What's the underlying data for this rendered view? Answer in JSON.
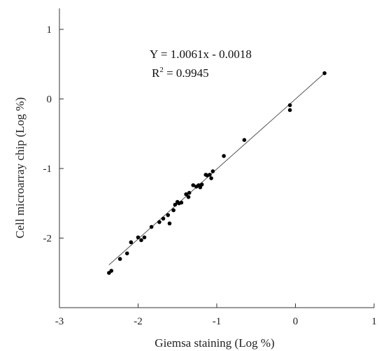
{
  "chart_data": {
    "type": "scatter",
    "title": "",
    "xlabel": "Giemsa staining (Log %)",
    "ylabel": "Cell microarray chip (Log %)",
    "xlim": [
      -3,
      1
    ],
    "ylim": [
      -3,
      1
    ],
    "xticks": [
      -3,
      -2,
      -1,
      0,
      1
    ],
    "yticks": [
      -2,
      -1,
      0,
      1
    ],
    "grid": false,
    "annotations": {
      "equation": "Y = 1.0061x - 0.0018",
      "r2_prefix": "R",
      "r2_sup": "2",
      "r2_suffix": " = 0.9945"
    },
    "fit_line": {
      "slope": 1.0061,
      "intercept": -0.0018,
      "x_range": [
        -2.37,
        0.37
      ]
    },
    "series": [
      {
        "points": [
          [
            -2.37,
            -2.5
          ],
          [
            -2.34,
            -2.47
          ],
          [
            -2.23,
            -2.3
          ],
          [
            -2.14,
            -2.22
          ],
          [
            -2.09,
            -2.06
          ],
          [
            -2.0,
            -1.99
          ],
          [
            -1.96,
            -2.03
          ],
          [
            -1.92,
            -1.99
          ],
          [
            -1.83,
            -1.84
          ],
          [
            -1.73,
            -1.77
          ],
          [
            -1.68,
            -1.72
          ],
          [
            -1.62,
            -1.67
          ],
          [
            -1.6,
            -1.79
          ],
          [
            -1.55,
            -1.6
          ],
          [
            -1.53,
            -1.52
          ],
          [
            -1.5,
            -1.48
          ],
          [
            -1.48,
            -1.5
          ],
          [
            -1.45,
            -1.49
          ],
          [
            -1.39,
            -1.37
          ],
          [
            -1.36,
            -1.41
          ],
          [
            -1.35,
            -1.35
          ],
          [
            -1.3,
            -1.24
          ],
          [
            -1.26,
            -1.26
          ],
          [
            -1.23,
            -1.24
          ],
          [
            -1.21,
            -1.27
          ],
          [
            -1.19,
            -1.23
          ],
          [
            -1.14,
            -1.09
          ],
          [
            -1.12,
            -1.1
          ],
          [
            -1.09,
            -1.09
          ],
          [
            -1.07,
            -1.14
          ],
          [
            -1.05,
            -1.04
          ],
          [
            -0.91,
            -0.82
          ],
          [
            -0.65,
            -0.59
          ],
          [
            -0.07,
            -0.09
          ],
          [
            -0.07,
            -0.16
          ],
          [
            0.37,
            0.37
          ]
        ]
      }
    ]
  }
}
